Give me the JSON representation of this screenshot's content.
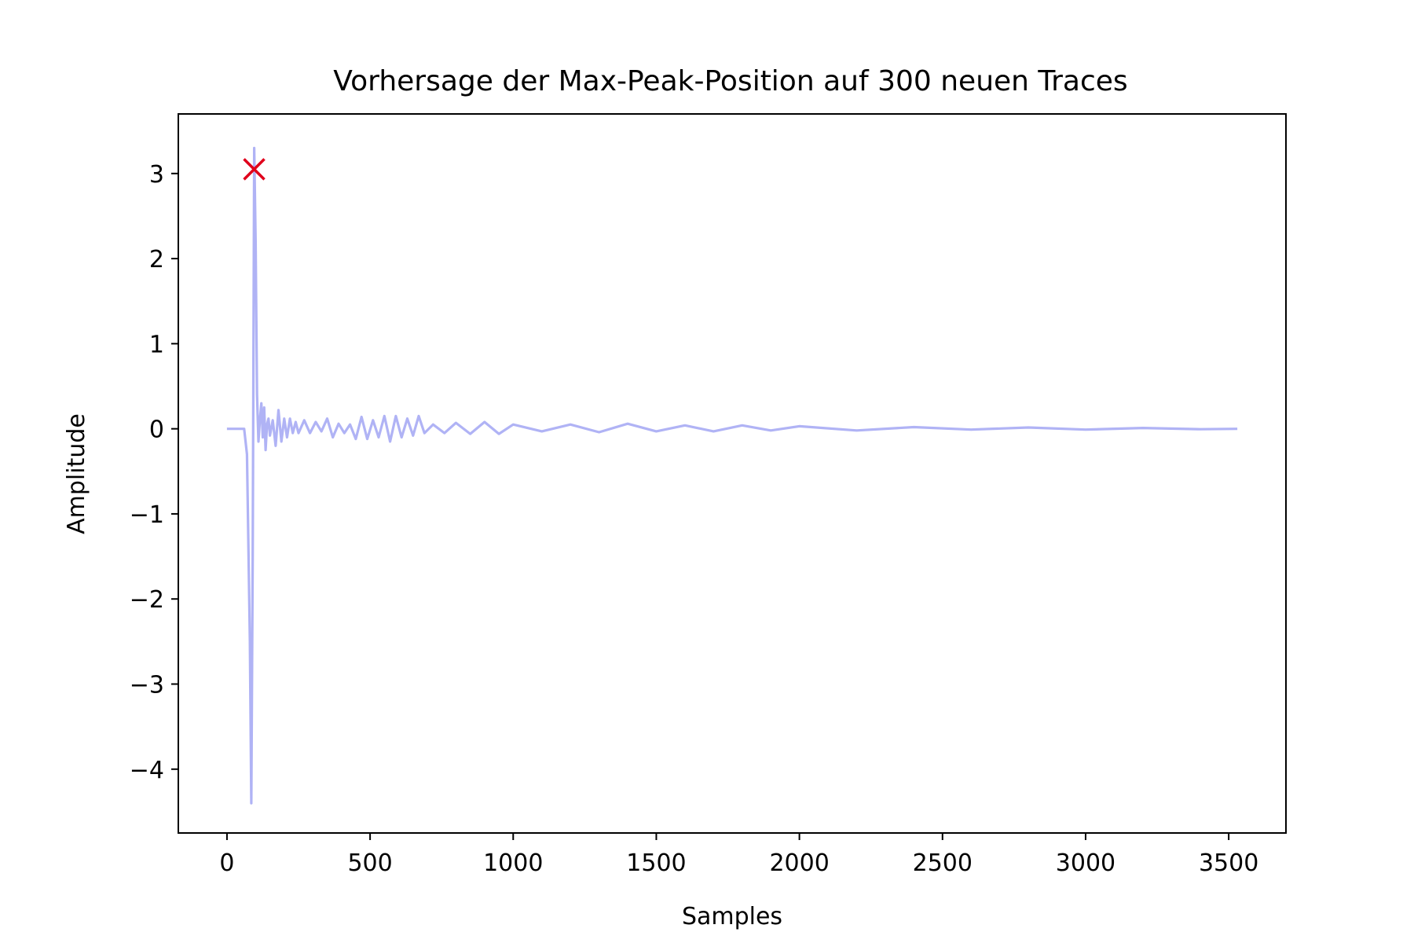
{
  "chart_data": {
    "type": "line",
    "title": "Vorhersage der Max-Peak-Position auf 300 neuen Traces",
    "xlabel": "Samples",
    "ylabel": "Amplitude",
    "xlim": [
      -170,
      3700
    ],
    "ylim": [
      -4.75,
      3.7
    ],
    "x_ticks": [
      0,
      500,
      1000,
      1500,
      2000,
      2500,
      3000,
      3500
    ],
    "x_tick_labels": [
      "0",
      "500",
      "1000",
      "1500",
      "2000",
      "2500",
      "3000",
      "3500"
    ],
    "y_ticks": [
      3,
      2,
      1,
      0,
      -1,
      -2,
      -3,
      -4
    ],
    "y_tick_labels": [
      "3",
      "2",
      "1",
      "0",
      "−1",
      "−2",
      "−3",
      "−4"
    ],
    "grid": false,
    "legend": "none",
    "series": [
      {
        "color": "#b0b3f5",
        "x": [
          0,
          60,
          70,
          80,
          85,
          90,
          95,
          100,
          105,
          110,
          115,
          120,
          125,
          130,
          135,
          140,
          145,
          150,
          160,
          170,
          180,
          190,
          200,
          210,
          220,
          230,
          240,
          250,
          270,
          290,
          310,
          330,
          350,
          370,
          390,
          410,
          430,
          450,
          470,
          490,
          510,
          530,
          550,
          570,
          590,
          610,
          630,
          650,
          670,
          690,
          720,
          760,
          800,
          850,
          900,
          950,
          1000,
          1100,
          1200,
          1300,
          1400,
          1500,
          1600,
          1700,
          1800,
          1900,
          2000,
          2200,
          2400,
          2600,
          2800,
          3000,
          3200,
          3400,
          3530
        ],
        "values": [
          0.0,
          0.0,
          -0.3,
          -2.5,
          -4.4,
          -1.5,
          3.3,
          2.2,
          0.4,
          -0.15,
          0.1,
          0.3,
          -0.1,
          0.25,
          -0.25,
          0.05,
          0.12,
          -0.08,
          0.1,
          -0.2,
          0.22,
          -0.15,
          0.12,
          -0.1,
          0.12,
          -0.05,
          0.08,
          -0.05,
          0.1,
          -0.05,
          0.08,
          -0.03,
          0.12,
          -0.1,
          0.06,
          -0.05,
          0.05,
          -0.12,
          0.14,
          -0.12,
          0.1,
          -0.1,
          0.15,
          -0.15,
          0.15,
          -0.1,
          0.12,
          -0.08,
          0.15,
          -0.05,
          0.05,
          -0.05,
          0.07,
          -0.06,
          0.08,
          -0.06,
          0.05,
          -0.03,
          0.05,
          -0.04,
          0.06,
          -0.03,
          0.04,
          -0.03,
          0.04,
          -0.02,
          0.03,
          -0.02,
          0.02,
          -0.01,
          0.015,
          -0.01,
          0.01,
          -0.005,
          0.0
        ]
      }
    ],
    "marker": {
      "x": 95,
      "y": 3.05,
      "symbol": "x",
      "color": "#e0001b"
    }
  }
}
